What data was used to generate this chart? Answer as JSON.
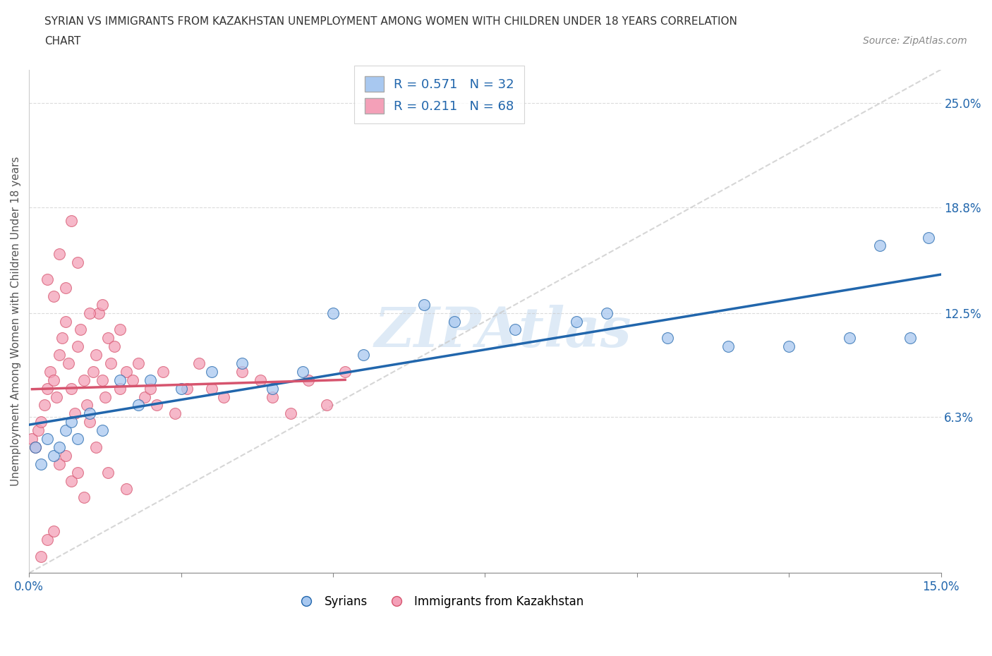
{
  "title_line1": "SYRIAN VS IMMIGRANTS FROM KAZAKHSTAN UNEMPLOYMENT AMONG WOMEN WITH CHILDREN UNDER 18 YEARS CORRELATION",
  "title_line2": "CHART",
  "source": "Source: ZipAtlas.com",
  "ylabel": "Unemployment Among Women with Children Under 18 years",
  "xlim": [
    0.0,
    15.0
  ],
  "ylim": [
    -3.0,
    27.0
  ],
  "ytick_positions": [
    6.3,
    12.5,
    18.8,
    25.0
  ],
  "ytick_labels": [
    "6.3%",
    "12.5%",
    "18.8%",
    "25.0%"
  ],
  "blue_color": "#a8c8f0",
  "pink_color": "#f4a0b8",
  "blue_line_color": "#2166ac",
  "pink_line_color": "#d6546e",
  "R_blue": 0.571,
  "N_blue": 32,
  "R_pink": 0.211,
  "N_pink": 68,
  "watermark": "ZIPAtlas",
  "legend_label_blue": "Syrians",
  "legend_label_pink": "Immigrants from Kazakhstan",
  "syrians_x": [
    0.1,
    0.2,
    0.3,
    0.4,
    0.5,
    0.6,
    0.7,
    0.8,
    1.0,
    1.2,
    1.5,
    1.8,
    2.0,
    2.5,
    3.0,
    3.5,
    4.0,
    4.5,
    5.0,
    5.5,
    6.5,
    7.0,
    8.0,
    9.0,
    9.5,
    10.5,
    11.5,
    12.5,
    13.5,
    14.0,
    14.5,
    14.8
  ],
  "syrians_y": [
    4.5,
    3.5,
    5.0,
    4.0,
    4.5,
    5.5,
    6.0,
    5.0,
    6.5,
    5.5,
    8.5,
    7.0,
    8.5,
    8.0,
    9.0,
    9.5,
    8.0,
    9.0,
    12.5,
    10.0,
    13.0,
    12.0,
    11.5,
    12.0,
    12.5,
    11.0,
    10.5,
    10.5,
    11.0,
    16.5,
    11.0,
    17.0
  ],
  "kazakh_x": [
    0.05,
    0.1,
    0.15,
    0.2,
    0.25,
    0.3,
    0.35,
    0.4,
    0.45,
    0.5,
    0.55,
    0.6,
    0.65,
    0.7,
    0.75,
    0.8,
    0.85,
    0.9,
    0.95,
    1.0,
    1.05,
    1.1,
    1.15,
    1.2,
    1.25,
    1.3,
    1.35,
    1.4,
    1.5,
    1.6,
    1.7,
    1.8,
    1.9,
    2.0,
    2.1,
    2.2,
    2.4,
    2.6,
    2.8,
    3.0,
    3.2,
    3.5,
    3.8,
    4.0,
    4.3,
    4.6,
    4.9,
    5.2,
    0.3,
    0.4,
    0.5,
    0.6,
    0.7,
    0.8,
    1.0,
    1.2,
    1.5,
    0.2,
    0.3,
    0.4,
    0.5,
    0.6,
    0.7,
    0.8,
    0.9,
    1.1,
    1.3,
    1.6
  ],
  "kazakh_y": [
    5.0,
    4.5,
    5.5,
    6.0,
    7.0,
    8.0,
    9.0,
    8.5,
    7.5,
    10.0,
    11.0,
    12.0,
    9.5,
    8.0,
    6.5,
    10.5,
    11.5,
    8.5,
    7.0,
    6.0,
    9.0,
    10.0,
    12.5,
    8.5,
    7.5,
    11.0,
    9.5,
    10.5,
    8.0,
    9.0,
    8.5,
    9.5,
    7.5,
    8.0,
    7.0,
    9.0,
    6.5,
    8.0,
    9.5,
    8.0,
    7.5,
    9.0,
    8.5,
    7.5,
    6.5,
    8.5,
    7.0,
    9.0,
    14.5,
    13.5,
    16.0,
    14.0,
    18.0,
    15.5,
    12.5,
    13.0,
    11.5,
    -2.0,
    -1.0,
    -0.5,
    3.5,
    4.0,
    2.5,
    3.0,
    1.5,
    4.5,
    3.0,
    2.0
  ]
}
